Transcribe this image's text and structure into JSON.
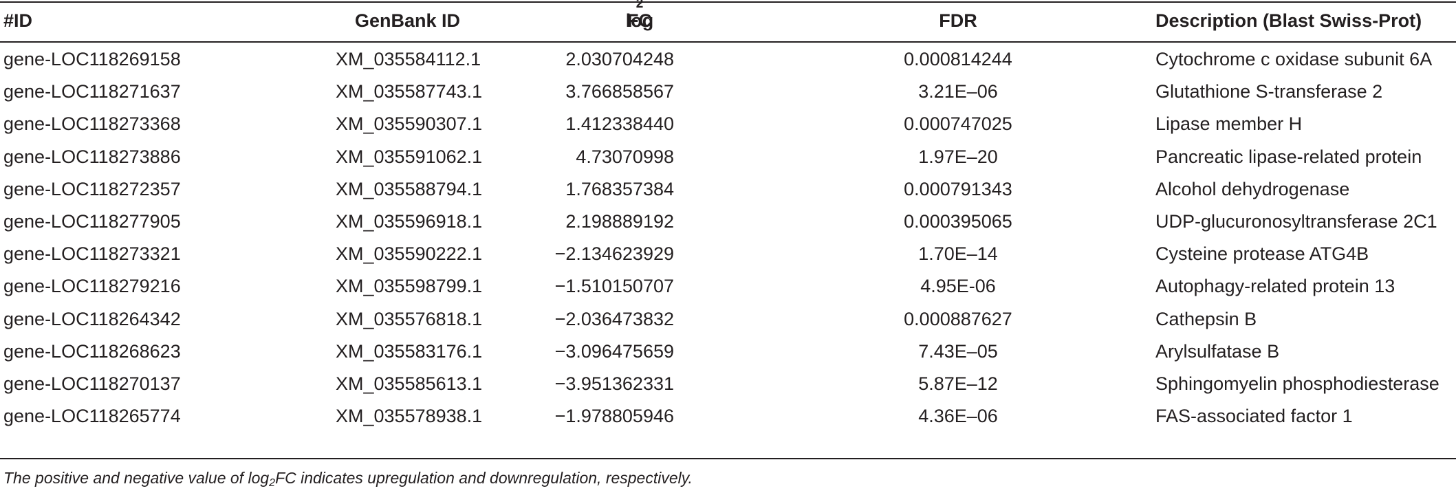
{
  "table": {
    "headers": {
      "id": "#ID",
      "genbank": "GenBank ID",
      "log2fc_base": "log",
      "log2fc_sub": "2",
      "log2fc_tail": "FC",
      "fdr": "FDR",
      "description": "Description (Blast Swiss-Prot)"
    },
    "rows": [
      {
        "id": "gene-LOC118269158",
        "genbank": "XM_035584112.1",
        "log2fc": "2.030704248",
        "fdr": "0.000814244",
        "description": "Cytochrome c oxidase subunit 6A"
      },
      {
        "id": "gene-LOC118271637",
        "genbank": "XM_035587743.1",
        "log2fc": "3.766858567",
        "fdr": "3.21E–06",
        "description": "Glutathione S-transferase 2"
      },
      {
        "id": "gene-LOC118273368",
        "genbank": "XM_035590307.1",
        "log2fc": "1.412338440",
        "fdr": "0.000747025",
        "description": "Lipase member H"
      },
      {
        "id": "gene-LOC118273886",
        "genbank": "XM_035591062.1",
        "log2fc": "4.73070998",
        "fdr": "1.97E–20",
        "description": "Pancreatic lipase-related protein"
      },
      {
        "id": "gene-LOC118272357",
        "genbank": "XM_035588794.1",
        "log2fc": "1.768357384",
        "fdr": "0.000791343",
        "description": "Alcohol dehydrogenase"
      },
      {
        "id": "gene-LOC118277905",
        "genbank": "XM_035596918.1",
        "log2fc": "2.198889192",
        "fdr": "0.000395065",
        "description": "UDP-glucuronosyltransferase 2C1"
      },
      {
        "id": "gene-LOC118273321",
        "genbank": "XM_035590222.1",
        "log2fc": "−2.134623929",
        "fdr": "1.70E–14",
        "description": "Cysteine protease ATG4B"
      },
      {
        "id": "gene-LOC118279216",
        "genbank": "XM_035598799.1",
        "log2fc": "−1.510150707",
        "fdr": "4.95E-06",
        "description": "Autophagy-related protein 13"
      },
      {
        "id": "gene-LOC118264342",
        "genbank": "XM_035576818.1",
        "log2fc": "−2.036473832",
        "fdr": "0.000887627",
        "description": "Cathepsin B"
      },
      {
        "id": "gene-LOC118268623",
        "genbank": "XM_035583176.1",
        "log2fc": "−3.096475659",
        "fdr": "7.43E–05",
        "description": "Arylsulfatase B"
      },
      {
        "id": "gene-LOC118270137",
        "genbank": "XM_035585613.1",
        "log2fc": "−3.951362331",
        "fdr": "5.87E–12",
        "description": "Sphingomyelin phosphodiesterase"
      },
      {
        "id": "gene-LOC118265774",
        "genbank": "XM_035578938.1",
        "log2fc": "−1.978805946",
        "fdr": "4.36E–06",
        "description": "FAS-associated factor 1"
      }
    ]
  },
  "footnote": {
    "before": "The positive and negative value of log",
    "sub": "2",
    "after": "FC indicates upregulation and downregulation, respectively."
  }
}
